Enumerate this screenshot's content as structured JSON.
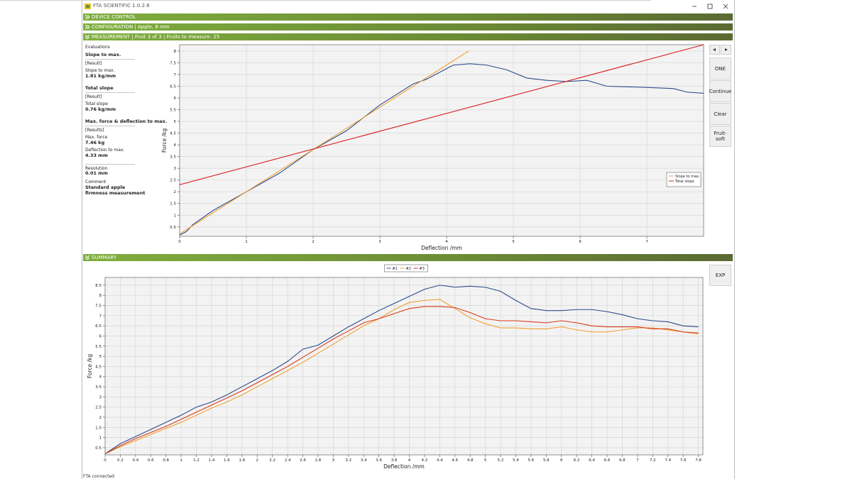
{
  "window": {
    "title": "FTA SCIENTIFIC 1.0.2.6",
    "status": "FTA connected"
  },
  "sections": [
    "DEVICE CONTROL",
    "CONFIGURATION | Apple, 8 mm",
    "MEASUREMENT | Fruit 3 of 3 | Fruits to measure: 25",
    "SUMMARY"
  ],
  "evaluations": {
    "title": "Evaluations",
    "items": [
      {
        "heading": "Slope to max.",
        "tag": "[Result]",
        "label": "Slope to max.",
        "value": "1.81 kg/mm"
      },
      {
        "heading": "Total slope",
        "tag": "[Result]",
        "label": "Total slope",
        "value": "0.76 kg/mm"
      },
      {
        "heading": "Max. force & deflection to max.",
        "tag": "[Results]",
        "label": "Max. force",
        "value": "7.46 kg",
        "label2": "Deflection to max.",
        "value2": "4.33 mm"
      }
    ],
    "resolution_label": "Resolution",
    "resolution": "0.01 mm",
    "comment_label": "Comment",
    "comment": "Standard apple firmness measurement"
  },
  "buttons": [
    "ONE",
    "Continue",
    "Clear",
    "Fruit-soft",
    "EXP"
  ],
  "chart_data": [
    {
      "type": "line",
      "xlabel": "Deflection /mm",
      "ylabel": "Force /kg",
      "xlim": [
        0,
        7.85
      ],
      "ylim": [
        0.1,
        8.27
      ],
      "xticks": [
        0,
        1,
        2,
        3,
        4,
        5,
        6,
        7
      ],
      "yticks": [
        0.5,
        1,
        1.5,
        2,
        2.5,
        3,
        3.5,
        4,
        4.5,
        5,
        5.5,
        6,
        6.5,
        7,
        7.5,
        8
      ],
      "grid": true,
      "legend": "lower right",
      "series": [
        {
          "color": "#2b4a8c",
          "x": [
            0,
            0.1,
            0.2,
            0.5,
            1,
            1.5,
            2,
            2.5,
            3,
            3.5,
            3.7,
            3.9,
            4.1,
            4.35,
            4.6,
            4.9,
            5.2,
            5.5,
            5.8,
            6.1,
            6.4,
            7,
            7.4,
            7.6,
            7.85
          ],
          "values": [
            0.15,
            0.3,
            0.6,
            1.2,
            2,
            2.8,
            3.8,
            4.6,
            5.7,
            6.6,
            6.8,
            7.1,
            7.4,
            7.46,
            7.4,
            7.2,
            6.85,
            6.75,
            6.7,
            6.75,
            6.5,
            6.45,
            6.4,
            6.25,
            6.2
          ]
        },
        {
          "name": "Slope to max.",
          "color": "#f0a030",
          "x": [
            0,
            4.33
          ],
          "values": [
            0.2,
            8.0
          ]
        },
        {
          "name": "Total slope",
          "color": "#d81e1e",
          "x": [
            0,
            7.85
          ],
          "values": [
            2.3,
            8.27
          ]
        }
      ]
    },
    {
      "type": "line",
      "xlabel": "Deflection /mm",
      "ylabel": "Force /kg",
      "xlim": [
        0,
        7.86
      ],
      "ylim": [
        0.15,
        8.88
      ],
      "x": [
        0,
        0.2,
        0.4,
        0.6,
        0.8,
        1,
        1.2,
        1.4,
        1.6,
        1.8,
        2,
        2.2,
        2.4,
        2.6,
        2.8,
        3,
        3.2,
        3.4,
        3.6,
        3.8,
        4,
        4.2,
        4.4,
        4.6,
        4.8,
        5,
        5.2,
        5.4,
        5.6,
        5.8,
        6,
        6.2,
        6.4,
        6.6,
        6.8,
        7,
        7.2,
        7.4,
        7.6,
        7.8
      ],
      "xticks": [
        0,
        0.2,
        0.4,
        0.6,
        0.8,
        1,
        1.2,
        1.4,
        1.6,
        1.8,
        2,
        2.2,
        2.4,
        2.6,
        2.8,
        3,
        3.2,
        3.4,
        3.6,
        3.8,
        4,
        4.2,
        4.4,
        4.6,
        4.8,
        5,
        5.2,
        5.4,
        5.6,
        5.8,
        6,
        6.2,
        6.4,
        6.6,
        6.8,
        7,
        7.2,
        7.4,
        7.6,
        7.8
      ],
      "yticks": [
        0.5,
        1,
        1.5,
        2,
        2.5,
        3,
        3.5,
        4,
        4.5,
        5,
        5.5,
        6,
        6.5,
        7,
        7.5,
        8,
        8.5
      ],
      "grid": true,
      "legend": "top center",
      "series": [
        {
          "name": "#1",
          "color": "#2b4a8c",
          "values": [
            0.2,
            0.7,
            1.05,
            1.4,
            1.75,
            2.1,
            2.5,
            2.75,
            3.1,
            3.5,
            3.9,
            4.3,
            4.75,
            5.35,
            5.55,
            6.0,
            6.45,
            6.85,
            7.25,
            7.6,
            7.95,
            8.3,
            8.5,
            8.4,
            8.45,
            8.4,
            8.2,
            7.75,
            7.35,
            7.25,
            7.25,
            7.3,
            7.3,
            7.2,
            7.05,
            6.85,
            6.75,
            6.7,
            6.5,
            6.45
          ]
        },
        {
          "name": "#2",
          "color": "#f0a030",
          "values": [
            0.2,
            0.55,
            0.85,
            1.15,
            1.45,
            1.75,
            2.1,
            2.45,
            2.75,
            3.1,
            3.5,
            3.9,
            4.3,
            4.7,
            5.15,
            5.6,
            6.05,
            6.5,
            6.85,
            7.3,
            7.65,
            7.75,
            7.8,
            7.35,
            6.9,
            6.6,
            6.4,
            6.4,
            6.35,
            6.35,
            6.45,
            6.3,
            6.2,
            6.2,
            6.3,
            6.4,
            6.4,
            6.3,
            6.2,
            6.1
          ]
        },
        {
          "name": "#3",
          "color": "#d83a1a",
          "values": [
            0.2,
            0.6,
            0.95,
            1.25,
            1.55,
            1.9,
            2.25,
            2.6,
            2.95,
            3.3,
            3.7,
            4.1,
            4.5,
            4.95,
            5.4,
            5.85,
            6.25,
            6.65,
            6.85,
            7.1,
            7.35,
            7.45,
            7.45,
            7.4,
            7.15,
            6.85,
            6.75,
            6.75,
            6.7,
            6.65,
            6.75,
            6.65,
            6.5,
            6.45,
            6.45,
            6.45,
            6.35,
            6.35,
            6.2,
            6.15
          ]
        }
      ]
    }
  ]
}
